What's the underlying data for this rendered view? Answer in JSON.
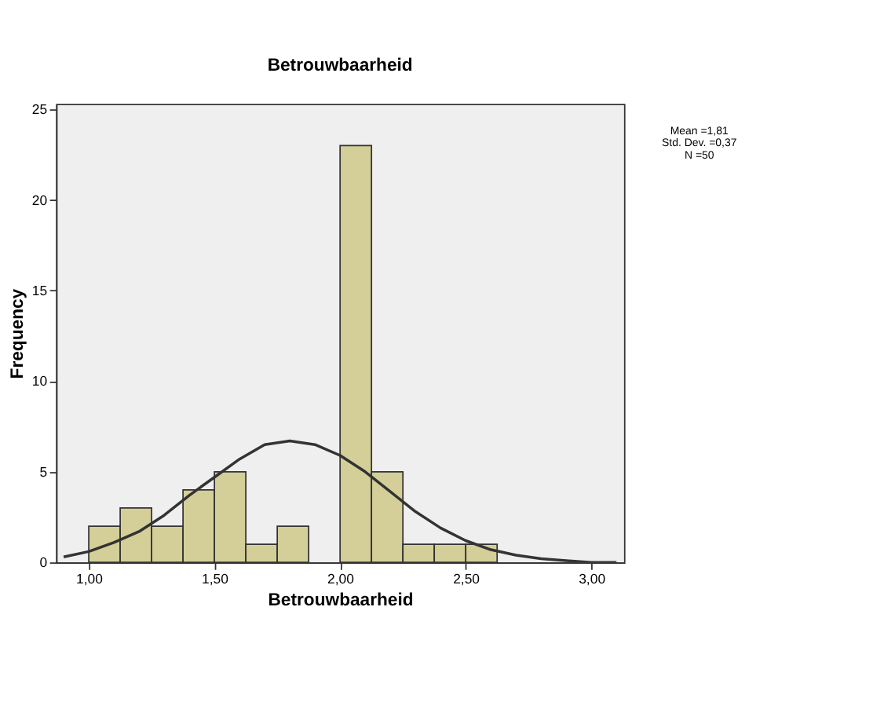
{
  "chart_data": {
    "type": "histogram",
    "title": "Betrouwbaarheid",
    "xlabel": "Betrouwbaarheid",
    "ylabel": "Frequency",
    "bins": [
      1.0,
      1.125,
      1.25,
      1.375,
      1.5,
      1.625,
      1.75,
      1.875,
      2.0,
      2.125,
      2.25,
      2.375,
      2.5,
      2.625
    ],
    "values": [
      2,
      3,
      2,
      4,
      5,
      1,
      2,
      0,
      23,
      5,
      1,
      1,
      1
    ],
    "color": "#d4cf98",
    "series": [
      {
        "type": "line",
        "color": "#333333",
        "x": [
          0.9,
          1.0,
          1.1,
          1.2,
          1.3,
          1.4,
          1.5,
          1.6,
          1.7,
          1.8,
          1.9,
          2.0,
          2.1,
          2.2,
          2.3,
          2.4,
          2.5,
          2.6,
          2.7,
          2.8,
          2.9,
          3.0,
          3.1
        ],
        "values": [
          0.3,
          0.6,
          1.1,
          1.7,
          2.6,
          3.7,
          4.7,
          5.7,
          6.5,
          6.7,
          6.5,
          5.9,
          5.0,
          3.9,
          2.8,
          1.9,
          1.2,
          0.7,
          0.4,
          0.2,
          0.1,
          0.0,
          0.0
        ]
      }
    ],
    "xlim": [
      0.87,
      3.13
    ],
    "ylim": [
      0,
      25.3
    ],
    "xticks": [
      {
        "value": 1,
        "label": "1,00"
      },
      {
        "value": 1.5,
        "label": "1,50"
      },
      {
        "value": 2,
        "label": "2,00"
      },
      {
        "value": 2.5,
        "label": "2,50"
      },
      {
        "value": 3,
        "label": "3,00"
      }
    ],
    "yticks": [
      0,
      5,
      10,
      15,
      20,
      25
    ],
    "grid": false,
    "annotations": [
      "Mean =1,81",
      "Std. Dev. =0,37",
      "N =50"
    ]
  }
}
